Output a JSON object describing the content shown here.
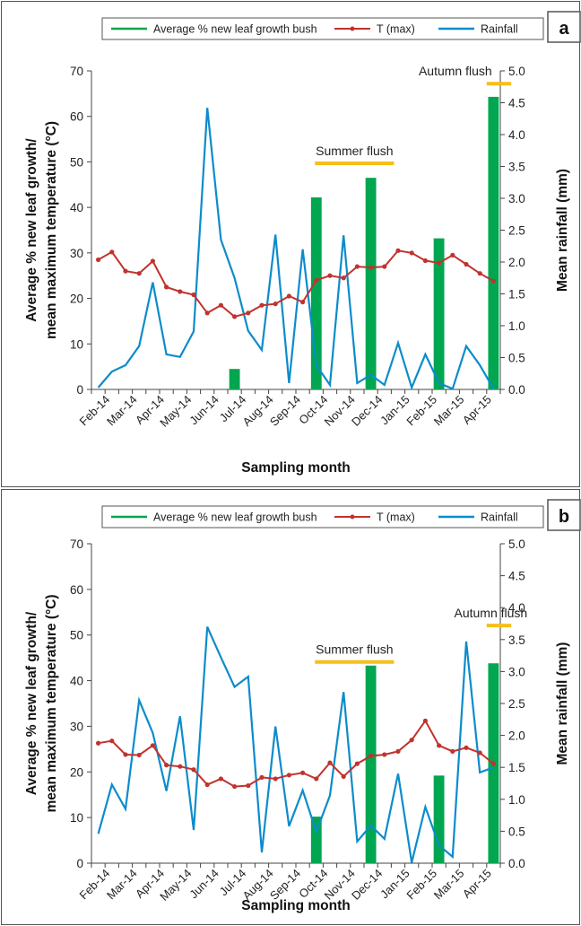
{
  "legend": {
    "growth": "Average % new leaf growth bush",
    "tmax": "T (max)",
    "rain": "Rainfall"
  },
  "colors": {
    "growth": "#00A650",
    "tmax": "#C0332E",
    "rain": "#0C8CCB",
    "flush": "#F6BE1A",
    "axis": "#444444",
    "frame": "#555555"
  },
  "chart_data": [
    {
      "panel_label": "a",
      "type": "bar+line",
      "xlabel": "Sampling month",
      "ylabel_line1": "Average % new leaf growth/",
      "ylabel_line2": "mean maximum temperature (°C)",
      "y2label": "Mean rainfall (mm)",
      "ylim": [
        0,
        70
      ],
      "y_ticks": [
        "0",
        "10",
        "20",
        "30",
        "40",
        "50",
        "60",
        "70"
      ],
      "y2lim": [
        0,
        5
      ],
      "y2_ticks": [
        "0.0",
        "0.5",
        "1.0",
        "1.5",
        "2.0",
        "2.5",
        "3.0",
        "3.5",
        "4.0",
        "4.5",
        "5.0"
      ],
      "categories": [
        "Feb-14",
        "Mar-14",
        "Apr-14",
        "May-14",
        "Jun-14",
        "Jul-14",
        "Aug-14",
        "Sep-14",
        "Oct-14",
        "Nov-14",
        "Dec-14",
        "Jan-15",
        "Feb-15",
        "Mar-15",
        "Apr-15"
      ],
      "bars": [
        {
          "position": 10.5,
          "value": 4.5
        },
        {
          "position": 16.5,
          "value": 42.2
        },
        {
          "position": 20.5,
          "value": 46.5
        },
        {
          "position": 25.5,
          "value": 33.2
        },
        {
          "position": 29.5,
          "value": 64.3
        }
      ],
      "tmax": [
        28.5,
        30.2,
        26,
        25.5,
        28.2,
        22.5,
        21.5,
        20.8,
        16.8,
        18.5,
        16,
        16.8,
        18.5,
        18.8,
        20.5,
        19.2,
        24,
        25,
        24.5,
        27,
        26.8,
        27,
        30.5,
        30,
        28.3,
        27.8,
        29.5,
        27.5,
        25.5,
        23.8
      ],
      "rainfall": [
        0.03,
        0.28,
        0.38,
        0.68,
        1.68,
        0.55,
        0.51,
        0.91,
        4.42,
        2.35,
        1.75,
        0.92,
        0.62,
        2.43,
        0.1,
        2.2,
        0.38,
        0.07,
        2.42,
        0.1,
        0.23,
        0.07,
        0.73,
        0.03,
        0.55,
        0.1,
        0.01,
        0.68,
        0.38,
        0.01
      ],
      "flushes": [
        {
          "label": "Summer flush",
          "start": 16.4,
          "end": 22.2,
          "label_x": 19.3,
          "level": 3.55
        },
        {
          "label": "Autumn flush",
          "start": 29.0,
          "end": 30.8,
          "label_x": 26.7,
          "level": 4.8
        }
      ]
    },
    {
      "panel_label": "b",
      "type": "bar+line",
      "xlabel": "Sampling month",
      "ylabel_line1": "Average % new leaf growth/",
      "ylabel_line2": "mean maximum temperature (°C)",
      "y2label": "Mean rainfall (mm)",
      "ylim": [
        0,
        70
      ],
      "y_ticks": [
        "0",
        "10",
        "20",
        "30",
        "40",
        "50",
        "60",
        "70"
      ],
      "y2lim": [
        0,
        5
      ],
      "y2_ticks": [
        "0.0",
        "0.5",
        "1.0",
        "1.5",
        "2.0",
        "2.5",
        "3.0",
        "3.5",
        "4.0",
        "4.5",
        "5.0"
      ],
      "categories": [
        "Feb-14",
        "Mar-14",
        "Apr-14",
        "May-14",
        "Jun-14",
        "Jul-14",
        "Aug-14",
        "Sep-14",
        "Oct-14",
        "Nov-14",
        "Dec-14",
        "Jan-15",
        "Feb-15",
        "Mar-15",
        "Apr-15"
      ],
      "bars": [
        {
          "position": 16.5,
          "value": 10.2
        },
        {
          "position": 20.5,
          "value": 43.3
        },
        {
          "position": 25.5,
          "value": 19.2
        },
        {
          "position": 29.5,
          "value": 43.8
        }
      ],
      "tmax": [
        26.3,
        26.8,
        23.8,
        23.7,
        25.8,
        21.5,
        21.2,
        20.5,
        17.2,
        18.5,
        16.8,
        17,
        18.8,
        18.5,
        19.3,
        19.8,
        18.5,
        22,
        19,
        21.8,
        23.5,
        23.8,
        24.5,
        27,
        31.2,
        25.8,
        24.5,
        25.3,
        24.2,
        21.8
      ],
      "rainfall": [
        0.46,
        1.23,
        0.85,
        2.55,
        2.04,
        1.13,
        2.3,
        0.52,
        3.7,
        3.22,
        2.76,
        2.92,
        0.17,
        2.14,
        0.58,
        1.14,
        0.49,
        1.06,
        2.68,
        0.34,
        0.59,
        0.38,
        1.4,
        0.01,
        0.88,
        0.28,
        0.1,
        3.47,
        1.42,
        1.5
      ],
      "flushes": [
        {
          "label": "Summer flush",
          "start": 16.4,
          "end": 22.2,
          "label_x": 19.3,
          "level": 3.15
        },
        {
          "label": "Autumn flush",
          "start": 29.0,
          "end": 30.8,
          "label_x": 29.3,
          "level": 3.72
        }
      ]
    }
  ]
}
